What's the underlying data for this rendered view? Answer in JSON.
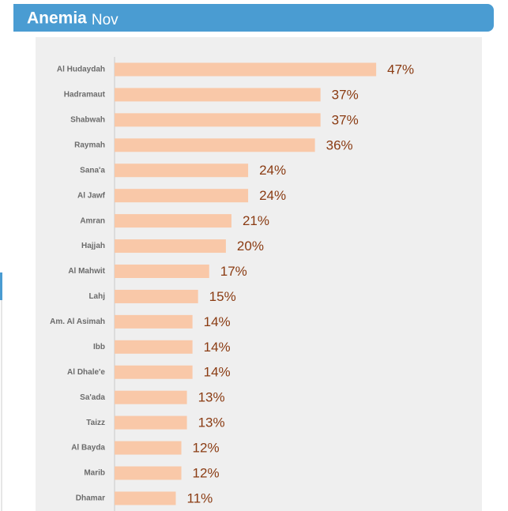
{
  "chart_data": {
    "type": "bar",
    "orientation": "horizontal",
    "title": "Anemia",
    "subtitle": "Nov",
    "categories": [
      "Al Hudaydah",
      "Hadramaut",
      "Shabwah",
      "Raymah",
      "Sana'a",
      "Al Jawf",
      "Amran",
      "Hajjah",
      "Al Mahwit",
      "Lahj",
      "Am. Al Asimah",
      "Ibb",
      "Al Dhale'e",
      "Sa'ada",
      "Taizz",
      "Al Bayda",
      "Marib",
      "Dhamar"
    ],
    "values": [
      47,
      37,
      37,
      36,
      24,
      24,
      21,
      20,
      17,
      15,
      14,
      14,
      14,
      13,
      13,
      12,
      12,
      11
    ],
    "value_labels": [
      "47%",
      "37%",
      "37%",
      "36%",
      "24%",
      "24%",
      "21%",
      "20%",
      "17%",
      "15%",
      "14%",
      "14%",
      "14%",
      "13%",
      "13%",
      "12%",
      "12%",
      "11%"
    ],
    "color": "#f9c8a8",
    "xlim": [
      0,
      66
    ]
  }
}
